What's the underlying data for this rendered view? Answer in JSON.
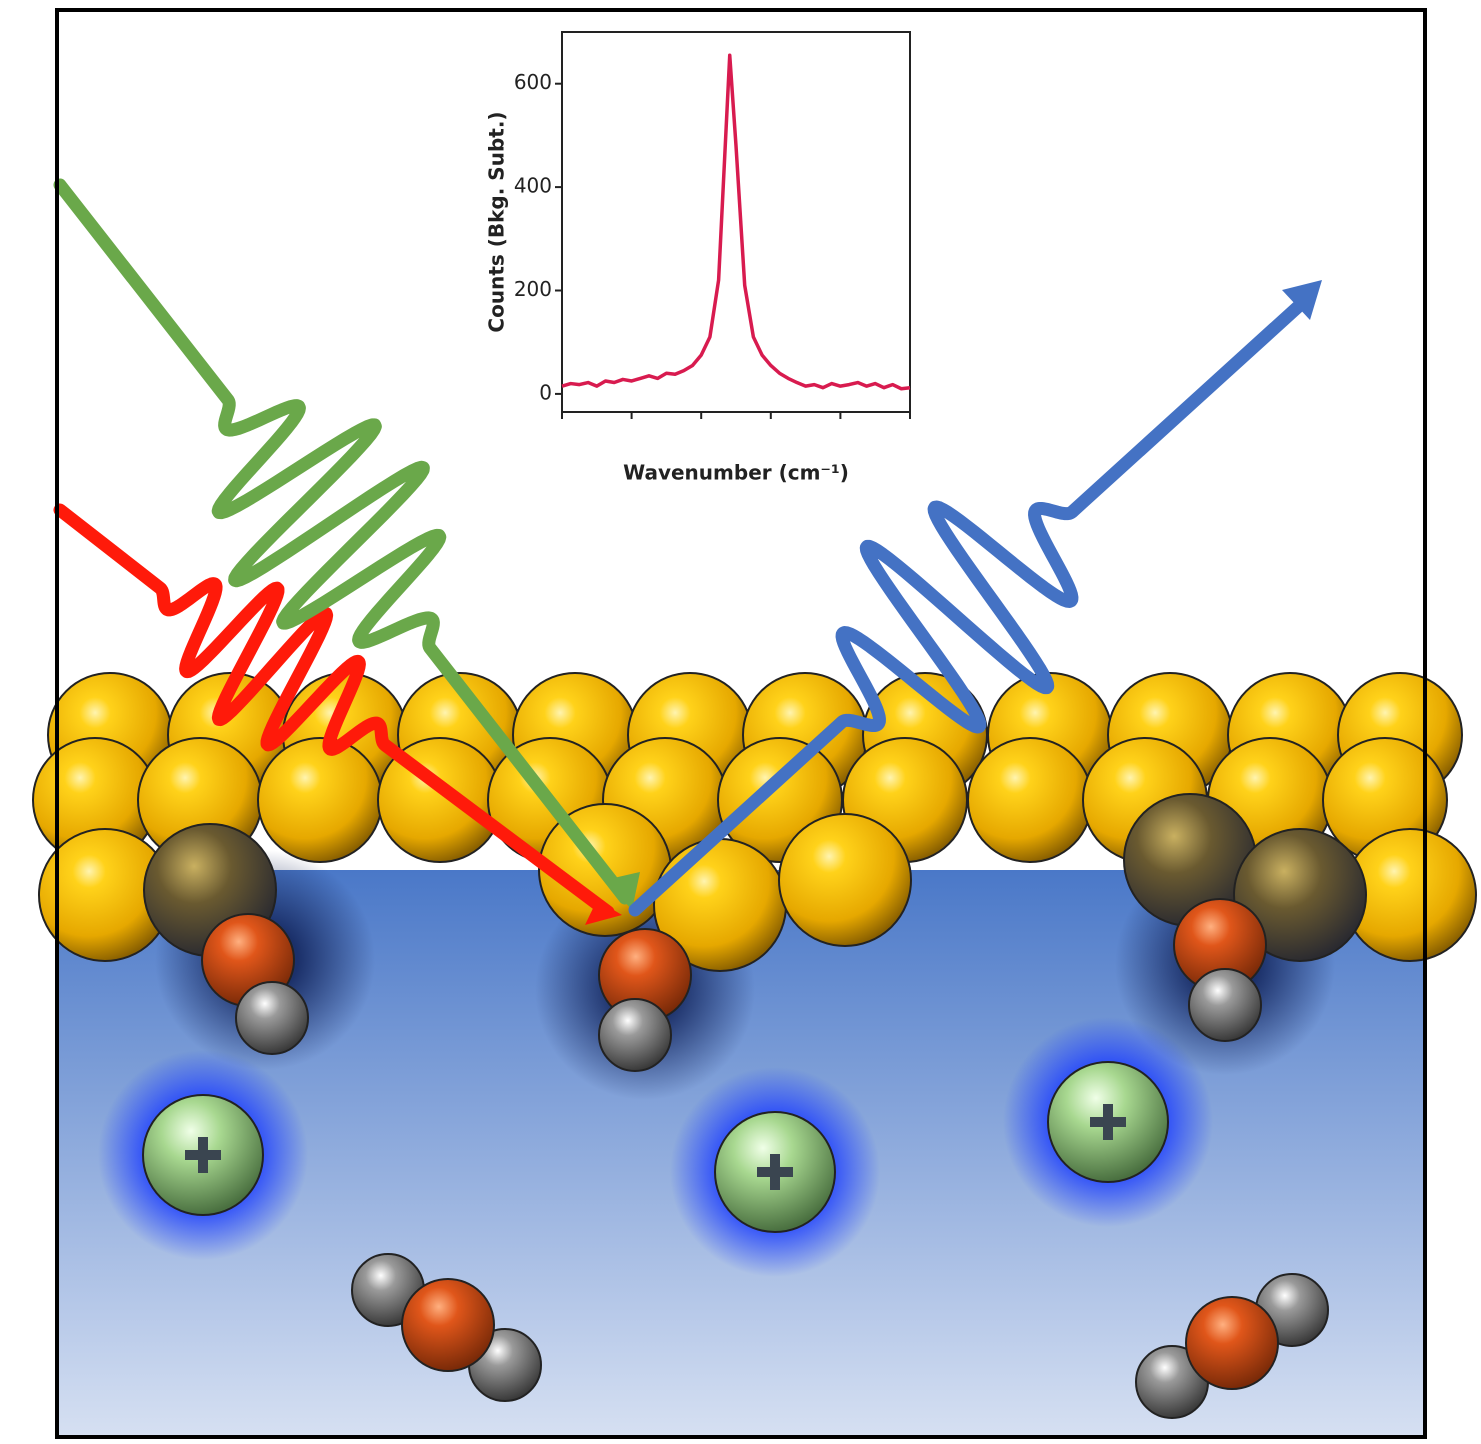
{
  "chart_data": {
    "type": "line",
    "ylabel": "Counts (Bkg. Subt.)",
    "xlabel": "Wavenumber (cm⁻¹)",
    "x": [
      0,
      0.125,
      0.25,
      0.375,
      0.5,
      0.625,
      0.75,
      0.875,
      1.0,
      1.125,
      1.25,
      1.375,
      1.5,
      1.625,
      1.75,
      1.875,
      2.0,
      2.125,
      2.25,
      2.375,
      2.41,
      2.5,
      2.625,
      2.75,
      2.875,
      3.0,
      3.125,
      3.25,
      3.375,
      3.5,
      3.625,
      3.75,
      3.875,
      4.0,
      4.125,
      4.25,
      4.375,
      4.5,
      4.625,
      4.75,
      4.875,
      5.0
    ],
    "series": [
      {
        "color": "#d81b4f",
        "values": [
          15,
          20,
          18,
          22,
          15,
          25,
          22,
          28,
          25,
          30,
          35,
          30,
          40,
          38,
          45,
          55,
          75,
          110,
          220,
          560,
          655,
          480,
          210,
          110,
          75,
          55,
          40,
          30,
          22,
          15,
          18,
          12,
          20,
          15,
          18,
          22,
          15,
          20,
          12,
          18,
          10,
          12
        ]
      }
    ],
    "xlim": [
      0,
      5
    ],
    "xticks": [
      0,
      1,
      2,
      3,
      4,
      5
    ],
    "ylim": [
      -35,
      700
    ],
    "yticks": [
      0,
      200,
      400,
      600
    ]
  }
}
